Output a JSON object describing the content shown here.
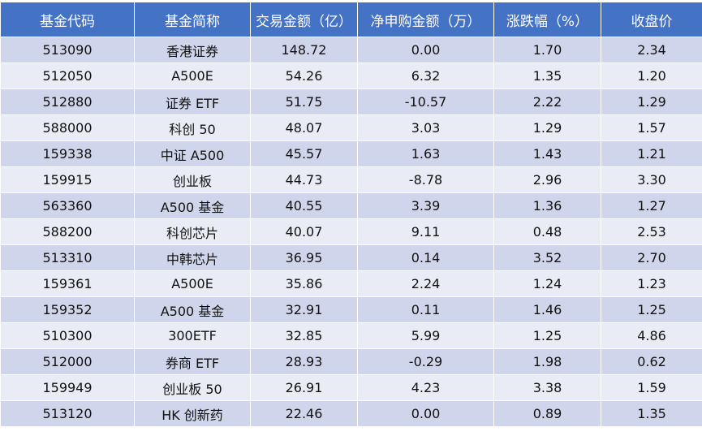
{
  "table": {
    "header": [
      "基金代码",
      "基金简称",
      "交易金额（亿）",
      "净申购金额（万）",
      "涨跌幅（%）",
      "收盘价"
    ],
    "rows": [
      [
        "513090",
        "香港证券",
        "148.72",
        "0.00",
        "1.70",
        "2.34"
      ],
      [
        "512050",
        "A500E",
        "54.26",
        "6.32",
        "1.35",
        "1.20"
      ],
      [
        "512880",
        "证券 ETF",
        "51.75",
        "-10.57",
        "2.22",
        "1.29"
      ],
      [
        "588000",
        "科创 50",
        "48.07",
        "3.03",
        "1.29",
        "1.57"
      ],
      [
        "159338",
        "中证 A500",
        "45.57",
        "1.63",
        "1.43",
        "1.21"
      ],
      [
        "159915",
        "创业板",
        "44.73",
        "-8.78",
        "2.96",
        "3.30"
      ],
      [
        "563360",
        "A500 基金",
        "40.55",
        "3.39",
        "1.36",
        "1.27"
      ],
      [
        "588200",
        "科创芯片",
        "40.07",
        "9.11",
        "0.48",
        "2.53"
      ],
      [
        "513310",
        "中韩芯片",
        "36.95",
        "0.14",
        "3.52",
        "2.70"
      ],
      [
        "159361",
        "A500E",
        "35.86",
        "2.24",
        "1.24",
        "1.23"
      ],
      [
        "159352",
        "A500 基金",
        "32.91",
        "0.11",
        "1.46",
        "1.25"
      ],
      [
        "510300",
        "300ETF",
        "32.85",
        "5.99",
        "1.25",
        "4.86"
      ],
      [
        "512000",
        "券商 ETF",
        "28.93",
        "-0.29",
        "1.98",
        "0.62"
      ],
      [
        "159949",
        "创业板 50",
        "26.91",
        "4.23",
        "3.38",
        "1.59"
      ],
      [
        "513120",
        "HK 创新药",
        "22.46",
        "0.00",
        "0.89",
        "1.35"
      ]
    ]
  }
}
